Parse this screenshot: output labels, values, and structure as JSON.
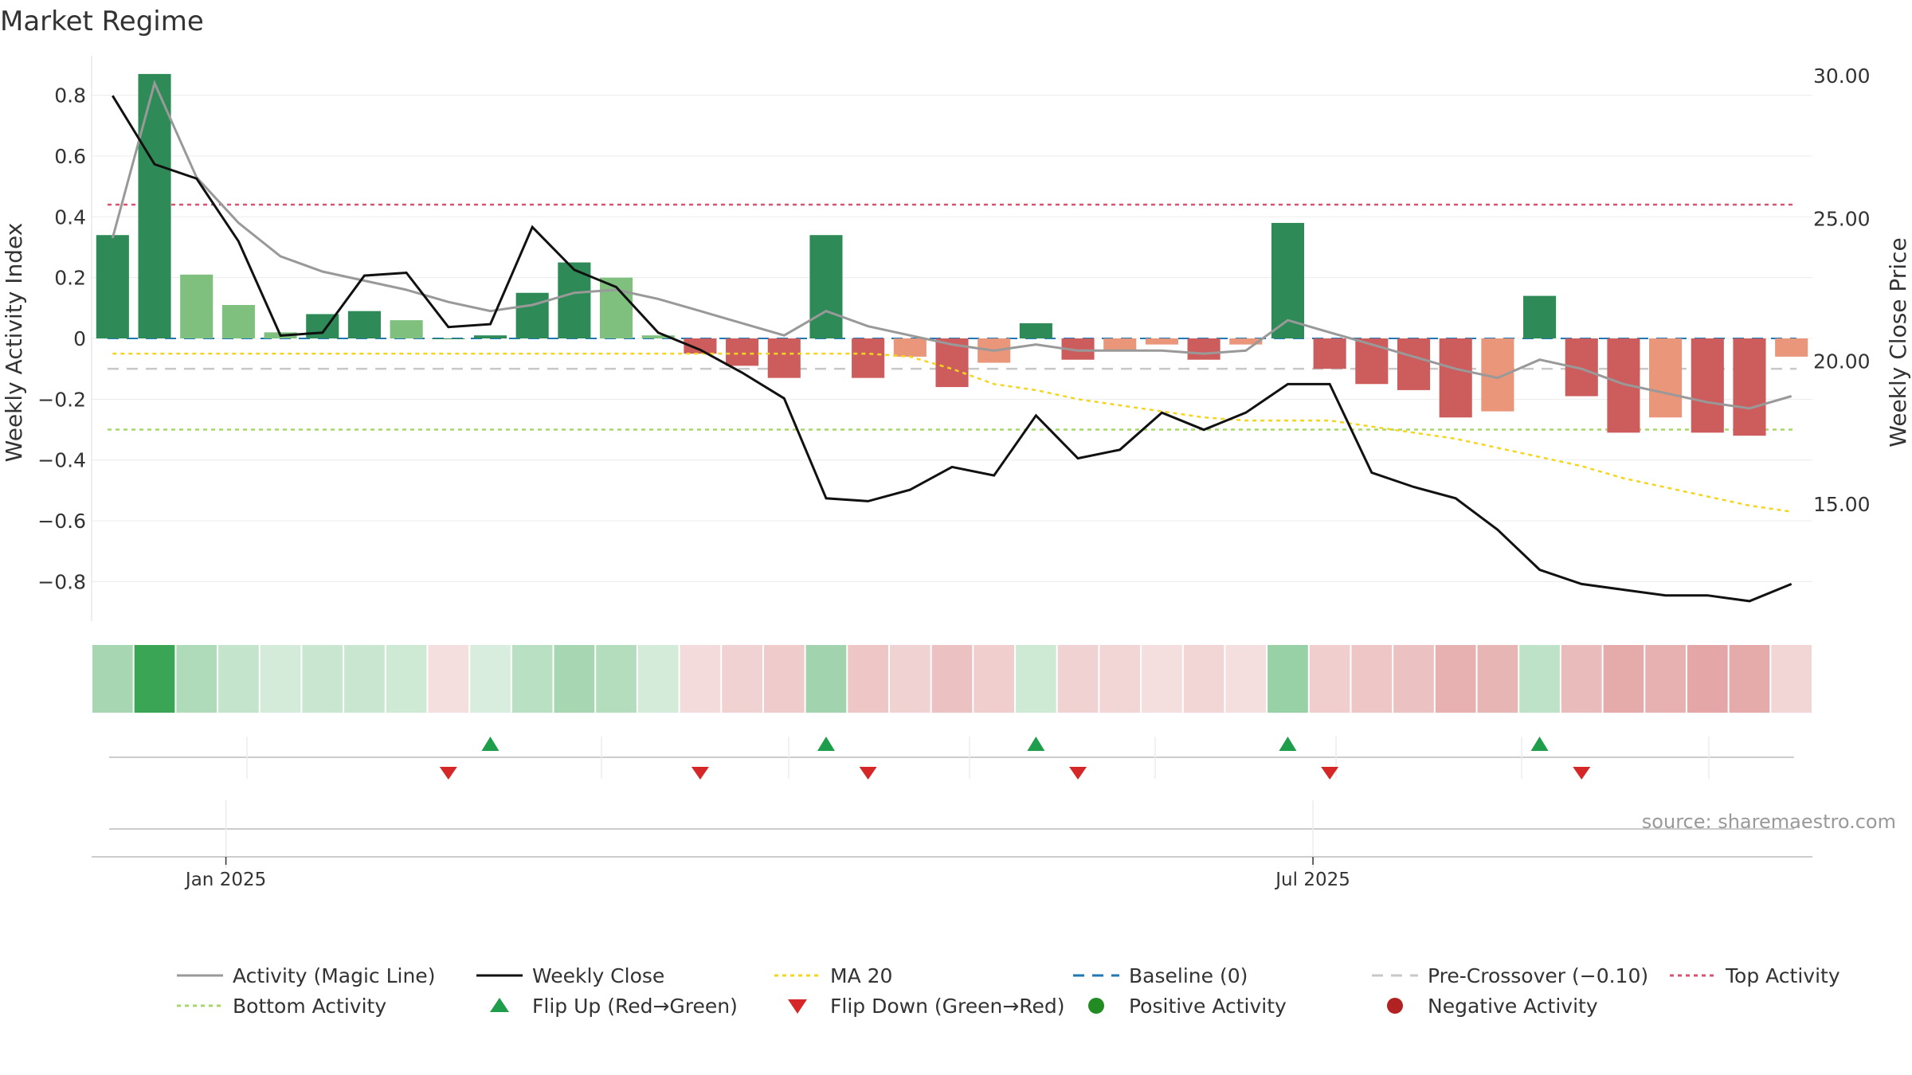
{
  "title": "Market Regime",
  "source": "source: sharemaestro.com",
  "colors": {
    "pos_strong": "#2e8b57",
    "pos_light": "#7fc07f",
    "neg_strong": "#cd5c5c",
    "neg_light": "#e9967a",
    "magic_line": "#999999",
    "close_line": "#111111",
    "ma20": "#f4d51f",
    "baseline": "#1f77b4",
    "pre_crossover": "#c8c8c8",
    "top_activity": "#d9536f",
    "bottom_activity": "#a6d96a",
    "flip_up": "#1e9e4a",
    "flip_down": "#d62728",
    "positive_dot": "#228b22",
    "negative_dot": "#b22222",
    "strip_pos": "#3aa655",
    "strip_neg": "#cd5c5c"
  },
  "chart_data": {
    "type": "bar",
    "title": "Market Regime",
    "y_left_label": "Weekly Activity Index",
    "y_right_label": "Weekly Close Price",
    "y_left_ticks": [
      {
        "v": 0.8,
        "label": "0.8"
      },
      {
        "v": 0.6,
        "label": "0.6"
      },
      {
        "v": 0.4,
        "label": "0.4"
      },
      {
        "v": 0.2,
        "label": "0.2"
      },
      {
        "v": 0,
        "label": "0"
      },
      {
        "v": -0.2,
        "label": "−0.2"
      },
      {
        "v": -0.4,
        "label": "−0.4"
      },
      {
        "v": -0.6,
        "label": "−0.6"
      },
      {
        "v": -0.8,
        "label": "−0.8"
      }
    ],
    "y_right_ticks": [
      {
        "v": 30,
        "label": "30.00"
      },
      {
        "v": 25,
        "label": "25.00"
      },
      {
        "v": 20,
        "label": "20.00"
      },
      {
        "v": 15,
        "label": "15.00"
      }
    ],
    "y_left_range": [
      -0.93,
      0.93
    ],
    "y_right_range": [
      10.9,
      30.7
    ],
    "x_ticks": [
      {
        "index": 3.2,
        "label": "Jan 2025"
      },
      {
        "index": 29.1,
        "label": "Jul 2025"
      }
    ],
    "bar_count": 41,
    "activity": [
      0.34,
      0.87,
      0.21,
      0.11,
      0.02,
      0.08,
      0.09,
      0.06,
      0.0,
      0.01,
      0.15,
      0.25,
      0.2,
      0.01,
      -0.05,
      -0.09,
      -0.13,
      0.34,
      -0.13,
      -0.06,
      -0.16,
      -0.08,
      0.05,
      -0.07,
      -0.04,
      -0.02,
      -0.07,
      -0.02,
      0.38,
      -0.1,
      -0.15,
      -0.17,
      -0.26,
      -0.24,
      0.14,
      -0.19,
      -0.31,
      -0.26,
      -0.31,
      -0.32,
      -0.06
    ],
    "bar_shade": [
      "strong",
      "strong",
      "light",
      "light",
      "light",
      "strong",
      "strong",
      "light",
      "strong",
      "strong",
      "strong",
      "strong",
      "light",
      "light",
      "strong",
      "strong",
      "strong",
      "strong",
      "strong",
      "light",
      "strong",
      "light",
      "strong",
      "strong",
      "light",
      "light",
      "strong",
      "light",
      "strong",
      "strong",
      "strong",
      "strong",
      "strong",
      "light",
      "strong",
      "strong",
      "strong",
      "light",
      "strong",
      "strong",
      "light"
    ],
    "magic_line": [
      0.33,
      0.84,
      0.53,
      0.38,
      0.27,
      0.22,
      0.19,
      0.16,
      0.12,
      0.09,
      0.11,
      0.15,
      0.16,
      0.13,
      0.09,
      0.05,
      0.01,
      0.09,
      0.04,
      0.01,
      -0.02,
      -0.04,
      -0.02,
      -0.04,
      -0.04,
      -0.04,
      -0.05,
      -0.04,
      0.06,
      0.02,
      -0.02,
      -0.06,
      -0.1,
      -0.13,
      -0.07,
      -0.1,
      -0.15,
      -0.18,
      -0.21,
      -0.23,
      -0.19
    ],
    "weekly_close": [
      29.3,
      26.9,
      26.4,
      24.2,
      20.9,
      21.0,
      23.0,
      23.1,
      21.2,
      21.3,
      24.7,
      23.2,
      22.6,
      21.0,
      20.4,
      19.6,
      18.7,
      15.2,
      15.1,
      15.5,
      16.3,
      16.0,
      18.1,
      16.6,
      16.9,
      18.2,
      17.6,
      18.2,
      19.2,
      19.2,
      16.1,
      15.6,
      15.2,
      14.1,
      12.7,
      12.2,
      12.0,
      11.8,
      11.8,
      11.6,
      12.2
    ],
    "ma20": [
      -0.05,
      -0.05,
      -0.05,
      -0.05,
      -0.05,
      -0.05,
      -0.05,
      -0.05,
      -0.05,
      -0.05,
      -0.05,
      -0.05,
      -0.05,
      -0.05,
      -0.05,
      -0.05,
      -0.05,
      -0.05,
      -0.05,
      -0.06,
      -0.1,
      -0.15,
      -0.17,
      -0.2,
      -0.22,
      -0.24,
      -0.26,
      -0.27,
      -0.27,
      -0.27,
      -0.29,
      -0.31,
      -0.33,
      -0.36,
      -0.39,
      -0.42,
      -0.46,
      -0.49,
      -0.52,
      -0.55,
      -0.57
    ],
    "baseline": 0,
    "pre_crossover": -0.1,
    "top_activity": 0.44,
    "bottom_activity": -0.3,
    "strip_intensity": [
      0.45,
      1.0,
      0.4,
      0.3,
      0.22,
      0.28,
      0.28,
      0.25,
      0.2,
      0.2,
      0.35,
      0.45,
      0.38,
      0.22,
      0.22,
      0.28,
      0.32,
      0.48,
      0.35,
      0.28,
      0.38,
      0.3,
      0.25,
      0.28,
      0.25,
      0.2,
      0.25,
      0.2,
      0.52,
      0.3,
      0.35,
      0.38,
      0.48,
      0.45,
      0.33,
      0.42,
      0.52,
      0.48,
      0.55,
      0.52,
      0.26
    ],
    "flip_up_indices": [
      9,
      17,
      22,
      28,
      34
    ],
    "flip_down_indices": [
      8,
      14,
      18,
      23,
      29,
      35
    ],
    "legend": [
      {
        "label": "Activity (Magic Line)",
        "style": "solid",
        "color_key": "magic_line"
      },
      {
        "label": "Weekly Close",
        "style": "solid",
        "color_key": "close_line"
      },
      {
        "label": "MA 20",
        "style": "dotted",
        "color_key": "ma20"
      },
      {
        "label": "Baseline (0)",
        "style": "dashed",
        "color_key": "baseline"
      },
      {
        "label": "Pre-Crossover (−0.10)",
        "style": "dashed",
        "color_key": "pre_crossover"
      },
      {
        "label": "Top Activity",
        "style": "dotted",
        "color_key": "top_activity"
      },
      {
        "label": "Bottom Activity",
        "style": "dotted",
        "color_key": "bottom_activity"
      },
      {
        "label": "Flip Up (Red→Green)",
        "style": "triangle-up",
        "color_key": "flip_up"
      },
      {
        "label": "Flip Down (Green→Red)",
        "style": "triangle-down",
        "color_key": "flip_down"
      },
      {
        "label": "Positive Activity",
        "style": "dot",
        "color_key": "positive_dot"
      },
      {
        "label": "Negative Activity",
        "style": "dot",
        "color_key": "negative_dot"
      }
    ],
    "legend_placement": "bottom"
  }
}
